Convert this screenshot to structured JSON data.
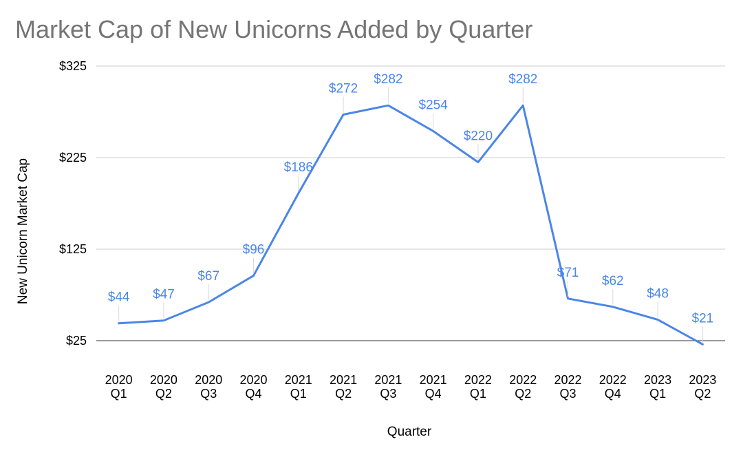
{
  "chart_data": {
    "type": "line",
    "title": "Market Cap of New Unicorns Added by Quarter",
    "xlabel": "Quarter",
    "ylabel": "New Unicorn Market Cap",
    "categories": [
      [
        "2020",
        "Q1"
      ],
      [
        "2020",
        "Q2"
      ],
      [
        "2020",
        "Q3"
      ],
      [
        "2020",
        "Q4"
      ],
      [
        "2021",
        "Q1"
      ],
      [
        "2021",
        "Q2"
      ],
      [
        "2021",
        "Q3"
      ],
      [
        "2021",
        "Q4"
      ],
      [
        "2022",
        "Q1"
      ],
      [
        "2022",
        "Q2"
      ],
      [
        "2022",
        "Q3"
      ],
      [
        "2022",
        "Q4"
      ],
      [
        "2023",
        "Q1"
      ],
      [
        "2023",
        "Q2"
      ]
    ],
    "series": [
      {
        "values": [
          44,
          47,
          67,
          96,
          186,
          272,
          282,
          254,
          220,
          282,
          71,
          62,
          48,
          21
        ],
        "data_labels": [
          "$44",
          "$47",
          "$67",
          "$96",
          "$186",
          "$272",
          "$282",
          "$254",
          "$220",
          "$282",
          "$71",
          "$62",
          "$48",
          "$21"
        ],
        "color": "#4a86e8"
      }
    ],
    "ylim": [
      25,
      325
    ],
    "yticks": [
      25,
      125,
      225,
      325
    ],
    "ytick_labels": [
      "$25",
      "$125",
      "$225",
      "$325"
    ],
    "grid": true,
    "legend": "none"
  }
}
